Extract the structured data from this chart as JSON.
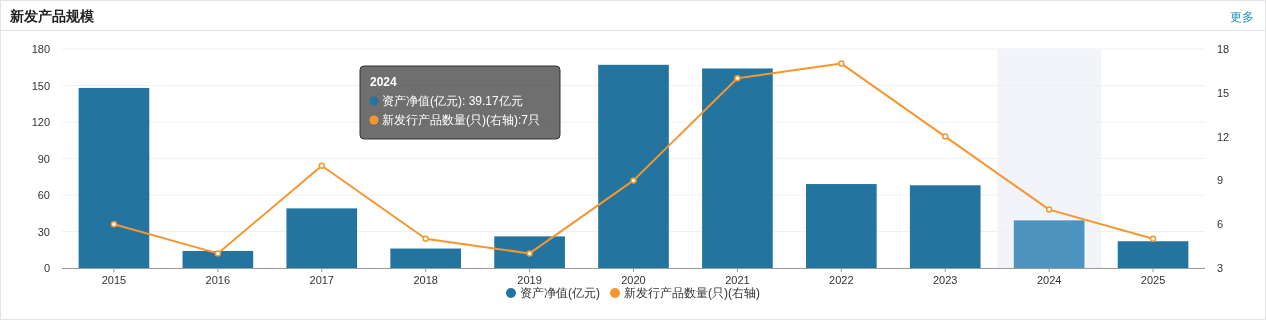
{
  "chart_data": {
    "type": "bar",
    "title": "新发产品规模",
    "categories": [
      "2015",
      "2016",
      "2017",
      "2018",
      "2019",
      "2020",
      "2021",
      "2022",
      "2023",
      "2024",
      "2025"
    ],
    "series": [
      {
        "name": "资产净值(亿元)",
        "color": "#23759f",
        "colors": [
          "#23759f",
          "#23759f",
          "#23759f",
          "#23759f",
          "#23759f",
          "#23759f",
          "#23759f",
          "#23759f",
          "#23759f",
          "#4d94c1",
          "#23759f"
        ],
        "values": [
          148,
          14,
          49,
          16,
          26,
          167,
          164,
          69,
          68,
          39.17,
          22
        ]
      },
      {
        "name": "新发行产品数量(只)(右轴)",
        "type": "line",
        "axis": "y2",
        "color": "#f7962e",
        "values": [
          6,
          4,
          10,
          5,
          4,
          9,
          16,
          17,
          12,
          7,
          5
        ]
      }
    ],
    "ylim": [
      0,
      180
    ],
    "yticks": [
      0,
      30,
      60,
      90,
      120,
      150,
      180
    ],
    "y2lim": [
      3,
      18
    ],
    "y2ticks": [
      3,
      6,
      9,
      12,
      15,
      18
    ],
    "grid": "y",
    "legend": "bottom",
    "marker": "circle",
    "line_style": "solid",
    "bands": [
      {
        "axis": "x",
        "from": "2024",
        "to": "2024",
        "color": "#f3f4fa"
      }
    ],
    "annotations": [
      "更多",
      "2024",
      "资产净值(亿元):      39.17亿元",
      "新发行产品数量(只)(右轴):7只"
    ]
  }
}
